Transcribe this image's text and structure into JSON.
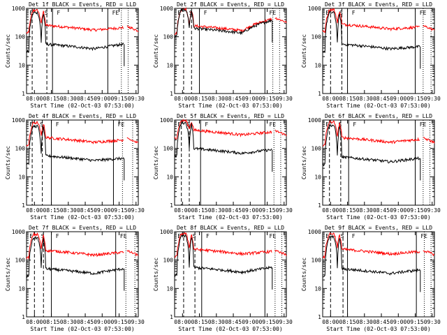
{
  "colors": {
    "events": "#000000",
    "lld": "#ff0000",
    "axes": "#000000",
    "background": "#ffffff"
  },
  "chart_data": {
    "type": "line",
    "panel_grid": "3x3",
    "x_tick_labels": [
      "08:00",
      "08:15",
      "08:30",
      "08:45",
      "09:00",
      "09:15",
      "09:30"
    ],
    "x_label": "Start Time (02-Oct-03 07:53:00)",
    "y_label": "Counts/sec",
    "y_tick_labels": [
      "1",
      "10",
      "100",
      "1000"
    ],
    "ylim": [
      1,
      1000
    ],
    "xlim_minutes": [
      0,
      99
    ],
    "series_names": [
      "Events",
      "LLD"
    ],
    "marker_letters": {
      "E": "E",
      "S": "S",
      "F": "F"
    },
    "panels": [
      {
        "title": "Det 1f BLACK = Events, RED = LLD",
        "black_base": 50,
        "red_base": 230,
        "flare_peak_black": 700,
        "flare_peak_red": 850,
        "end_black": 55,
        "end_red": 210,
        "dash_lines": [
          5,
          18
        ],
        "solid_lines": [
          23,
          72
        ],
        "dot_lines": [
          84,
          90
        ]
      },
      {
        "title": "Det 2f BLACK = Events, RED = LLD",
        "black_base": 180,
        "red_base": 220,
        "flare_peak_black": 900,
        "flare_peak_red": 950,
        "end_black": 380,
        "end_red": 420,
        "dash_lines": [
          8,
          15
        ],
        "solid_lines": [
          22,
          80
        ],
        "dot_lines": [
          87,
          93
        ]
      },
      {
        "title": "Det 3f BLACK = Events, RED = LLD",
        "black_base": 50,
        "red_base": 250,
        "flare_peak_black": 700,
        "flare_peak_red": 900,
        "end_black": 45,
        "end_red": 220,
        "dash_lines": [
          7,
          17
        ],
        "solid_lines": [
          22,
          82
        ],
        "dot_lines": [
          89,
          96
        ]
      },
      {
        "title": "Det 4f BLACK = Events, RED = LLD",
        "black_base": 50,
        "red_base": 220,
        "flare_peak_black": 600,
        "flare_peak_red": 800,
        "end_black": 45,
        "end_red": 200,
        "dash_lines": [
          5,
          14
        ],
        "solid_lines": [
          22,
          77
        ],
        "dot_lines": [
          85,
          94
        ]
      },
      {
        "title": "Det 5f BLACK = Events, RED = LLD",
        "black_base": 90,
        "red_base": 400,
        "flare_peak_black": 800,
        "flare_peak_red": 950,
        "end_black": 90,
        "end_red": 380,
        "dash_lines": [
          6,
          13
        ],
        "solid_lines": [
          23,
          80
        ],
        "dot_lines": [
          88,
          94
        ]
      },
      {
        "title": "Det 6f BLACK = Events, RED = LLD",
        "black_base": 45,
        "red_base": 220,
        "flare_peak_black": 650,
        "flare_peak_red": 850,
        "end_black": 45,
        "end_red": 210,
        "dash_lines": [
          6,
          16
        ],
        "solid_lines": [
          23,
          82
        ],
        "dot_lines": [
          89,
          95
        ]
      },
      {
        "title": "Det 7f BLACK = Events, RED = LLD",
        "black_base": 45,
        "red_base": 200,
        "flare_peak_black": 600,
        "flare_peak_red": 800,
        "end_black": 50,
        "end_red": 190,
        "dash_lines": [
          7,
          15
        ],
        "solid_lines": [
          22,
          79
        ],
        "dot_lines": [
          88,
          96
        ]
      },
      {
        "title": "Det 8f BLACK = Events, RED = LLD",
        "black_base": 50,
        "red_base": 220,
        "flare_peak_black": 700,
        "flare_peak_red": 850,
        "end_black": 55,
        "end_red": 200,
        "dash_lines": [
          8,
          18
        ],
        "solid_lines": [
          24,
          80
        ],
        "dot_lines": [
          89,
          95
        ]
      },
      {
        "title": "Det 9f BLACK = Events, RED = LLD",
        "black_base": 45,
        "red_base": 220,
        "flare_peak_black": 650,
        "flare_peak_red": 850,
        "end_black": 45,
        "end_red": 200,
        "dash_lines": [
          7,
          18
        ],
        "solid_lines": [
          22,
          83
        ],
        "dot_lines": [
          90,
          96
        ]
      }
    ]
  }
}
